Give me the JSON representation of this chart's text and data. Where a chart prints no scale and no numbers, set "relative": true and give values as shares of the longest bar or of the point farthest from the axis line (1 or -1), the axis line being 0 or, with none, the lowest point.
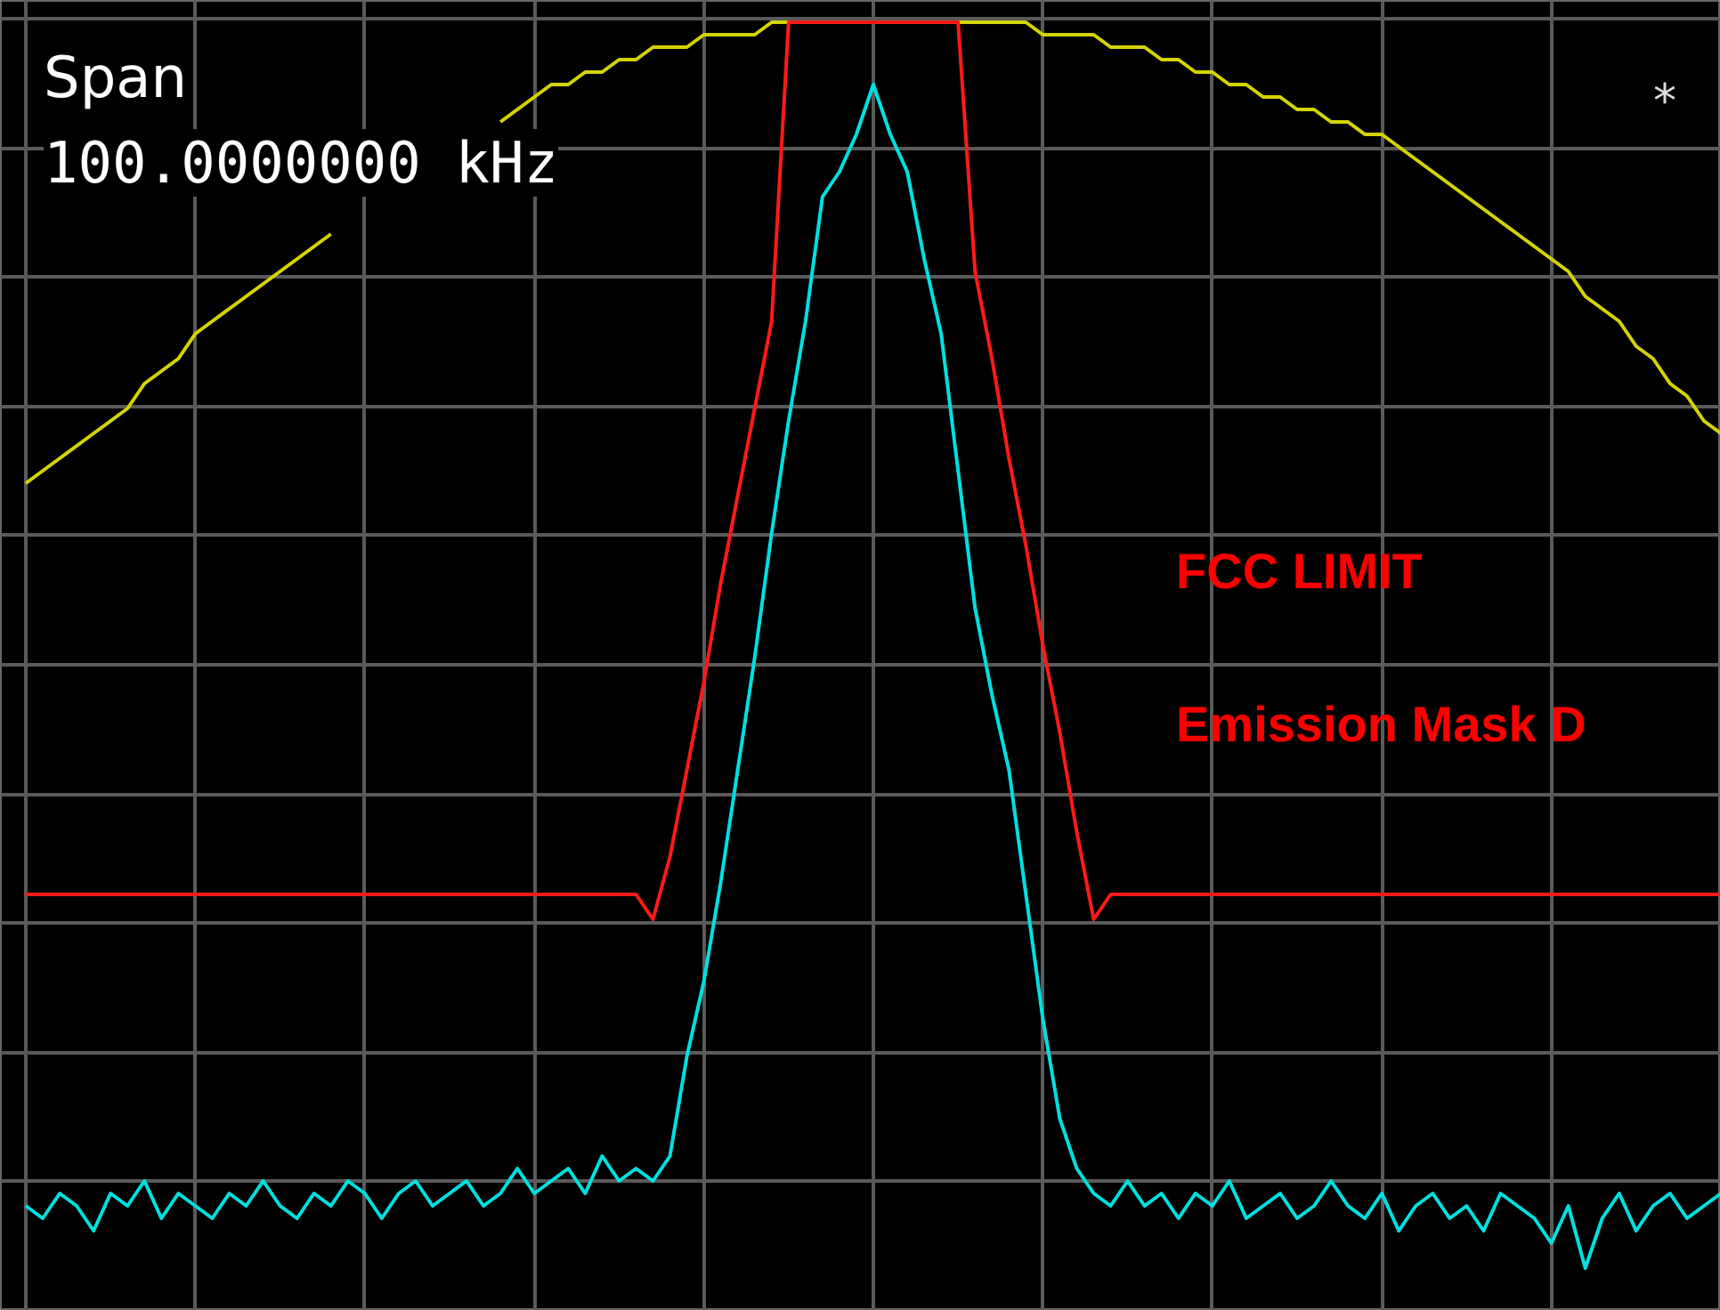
{
  "chart_data": {
    "type": "line",
    "relative": true,
    "grid": true,
    "categories": [
      null,
      null,
      null,
      null,
      null,
      null,
      null,
      null,
      null,
      null,
      null,
      null,
      null,
      null,
      null,
      null,
      null,
      null,
      null,
      null,
      null,
      null,
      null,
      null,
      null,
      null,
      null,
      null,
      null,
      null,
      null,
      null,
      null,
      null,
      null,
      null,
      null,
      null,
      null,
      null,
      null,
      null,
      null,
      null,
      null,
      null,
      null,
      null,
      null,
      null,
      null,
      null,
      null,
      null,
      null,
      null,
      null,
      null,
      null,
      null,
      null,
      null,
      null,
      null,
      null,
      null,
      null,
      null,
      null,
      null,
      null,
      null,
      null,
      null,
      null,
      null,
      null,
      null,
      null,
      null,
      null,
      null,
      null,
      null,
      null,
      null,
      null,
      null,
      null,
      null,
      null,
      null,
      null,
      null,
      null,
      null,
      null,
      null,
      null,
      null,
      null
    ],
    "series": [
      {
        "color": "#d4d400",
        "values": [
          0.63,
          0.64,
          0.65,
          0.66,
          0.67,
          0.68,
          0.69,
          0.71,
          0.72,
          0.73,
          0.75,
          0.76,
          0.77,
          0.78,
          0.79,
          0.8,
          0.81,
          0.82,
          0.83,
          null,
          null,
          null,
          null,
          null,
          null,
          null,
          null,
          null,
          0.92,
          0.93,
          0.94,
          0.95,
          0.95,
          0.96,
          0.96,
          0.97,
          0.97,
          0.98,
          0.98,
          0.98,
          0.99,
          0.99,
          0.99,
          0.99,
          1.0,
          1.0,
          null,
          null,
          null,
          null,
          null,
          null,
          null,
          null,
          null,
          1.0,
          1.0,
          1.0,
          1.0,
          1.0,
          0.99,
          0.99,
          0.99,
          0.99,
          0.98,
          0.98,
          0.98,
          0.97,
          0.97,
          0.96,
          0.96,
          0.95,
          0.95,
          0.94,
          0.94,
          0.93,
          0.93,
          0.92,
          0.92,
          0.91,
          0.91,
          0.9,
          0.89,
          0.88,
          0.87,
          0.86,
          0.85,
          0.84,
          0.83,
          0.82,
          0.81,
          0.8,
          0.78,
          0.77,
          0.76,
          0.74,
          0.73,
          0.71,
          0.7,
          0.68,
          0.67
        ]
      },
      {
        "color": "#ff1a1a",
        "values": [
          0.3,
          0.3,
          0.3,
          0.3,
          0.3,
          0.3,
          0.3,
          0.3,
          0.3,
          0.3,
          0.3,
          0.3,
          0.3,
          0.3,
          0.3,
          0.3,
          0.3,
          0.3,
          0.3,
          0.3,
          0.3,
          0.3,
          0.3,
          0.3,
          0.3,
          0.3,
          0.3,
          0.3,
          0.3,
          0.3,
          0.3,
          0.3,
          0.3,
          0.3,
          0.3,
          0.3,
          0.3,
          0.28,
          0.33,
          0.4,
          0.47,
          0.55,
          0.62,
          0.69,
          0.76,
          1.0,
          1.0,
          1.0,
          1.0,
          1.0,
          1.0,
          1.0,
          1.0,
          1.0,
          1.0,
          1.0,
          0.8,
          0.73,
          0.65,
          0.58,
          0.5,
          0.43,
          0.35,
          0.28,
          0.3,
          0.3,
          0.3,
          0.3,
          0.3,
          0.3,
          0.3,
          0.3,
          0.3,
          0.3,
          0.3,
          0.3,
          0.3,
          0.3,
          0.3,
          0.3,
          0.3,
          0.3,
          0.3,
          0.3,
          0.3,
          0.3,
          0.3,
          0.3,
          0.3,
          0.3,
          0.3,
          0.3,
          0.3,
          0.3,
          0.3,
          0.3,
          0.3,
          0.3,
          0.3,
          0.3,
          0.3
        ]
      },
      {
        "color": "#00e0e0",
        "values": [
          0.05,
          0.04,
          0.06,
          0.05,
          0.03,
          0.06,
          0.05,
          0.07,
          0.04,
          0.06,
          0.05,
          0.04,
          0.06,
          0.05,
          0.07,
          0.05,
          0.04,
          0.06,
          0.05,
          0.07,
          0.06,
          0.04,
          0.06,
          0.07,
          0.05,
          0.06,
          0.07,
          0.05,
          0.06,
          0.08,
          0.06,
          0.07,
          0.08,
          0.06,
          0.09,
          0.07,
          0.08,
          0.07,
          0.09,
          0.17,
          0.23,
          0.31,
          0.4,
          0.49,
          0.59,
          0.68,
          0.76,
          0.86,
          0.88,
          0.91,
          0.95,
          0.91,
          0.88,
          0.81,
          0.75,
          0.64,
          0.53,
          0.46,
          0.4,
          0.3,
          0.2,
          0.12,
          0.08,
          0.06,
          0.05,
          0.07,
          0.05,
          0.06,
          0.04,
          0.06,
          0.05,
          0.07,
          0.04,
          0.05,
          0.06,
          0.04,
          0.05,
          0.07,
          0.05,
          0.04,
          0.06,
          0.03,
          0.05,
          0.06,
          0.04,
          0.05,
          0.03,
          0.06,
          0.05,
          0.04,
          0.02,
          0.05,
          0.0,
          0.04,
          0.06,
          0.03,
          0.05,
          0.06,
          0.04,
          0.05,
          0.06
        ]
      }
    ],
    "annotations": [
      "Span",
      "100.0000000 kHz",
      "*",
      "FCC LIMIT",
      "Emission Mask D"
    ]
  }
}
